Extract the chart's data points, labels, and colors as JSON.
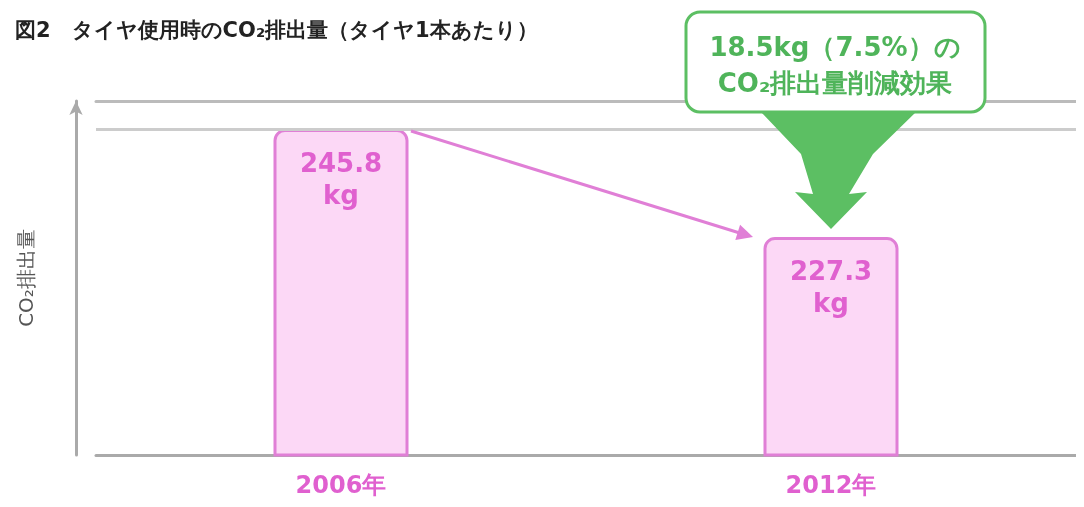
{
  "chart_data": {
    "type": "bar",
    "title": "図2　タイヤ使用時のCO₂排出量（タイヤ1本あたり）",
    "ylabel": "CO₂排出量",
    "categories": [
      "2006年",
      "2012年"
    ],
    "values": [
      245.8,
      227.3
    ],
    "color": "#fcd8f6",
    "value_labels": [
      "245.8 kg",
      "227.3 kg"
    ],
    "ylim": [
      190,
      250.6
    ],
    "ref_lines": [
      {
        "axis": "y",
        "value": 245.8,
        "color": "#cccccc"
      }
    ],
    "annotations": [
      "18.5kg（7.5%）の\nCO₂排出量削減効果"
    ],
    "grid": false
  }
}
